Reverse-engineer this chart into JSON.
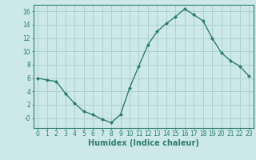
{
  "x": [
    0,
    1,
    2,
    3,
    4,
    5,
    6,
    7,
    8,
    9,
    10,
    11,
    12,
    13,
    14,
    15,
    16,
    17,
    18,
    19,
    20,
    21,
    22,
    23
  ],
  "y": [
    6.0,
    5.7,
    5.5,
    3.7,
    2.2,
    1.0,
    0.5,
    -0.2,
    -0.7,
    0.5,
    4.5,
    7.8,
    11.0,
    13.0,
    14.2,
    15.2,
    16.4,
    15.5,
    14.6,
    12.0,
    9.8,
    8.6,
    7.8,
    6.3
  ],
  "line_color": "#2e7d6e",
  "marker": "D",
  "marker_size": 2.0,
  "bg_color": "#cce8e8",
  "grid_color": "#aacccc",
  "xlabel": "Humidex (Indice chaleur)",
  "ylim": [
    -1.5,
    17.0
  ],
  "xlim": [
    -0.5,
    23.5
  ],
  "yticks": [
    0,
    2,
    4,
    6,
    8,
    10,
    12,
    14,
    16
  ],
  "ytick_labels": [
    "-0",
    "2",
    "4",
    "6",
    "8",
    "10",
    "12",
    "14",
    "16"
  ],
  "xticks": [
    0,
    1,
    2,
    3,
    4,
    5,
    6,
    7,
    8,
    9,
    10,
    11,
    12,
    13,
    14,
    15,
    16,
    17,
    18,
    19,
    20,
    21,
    22,
    23
  ],
  "axis_color": "#2e7d6e",
  "tick_font_size": 5.5,
  "xlabel_font_size": 7.0
}
